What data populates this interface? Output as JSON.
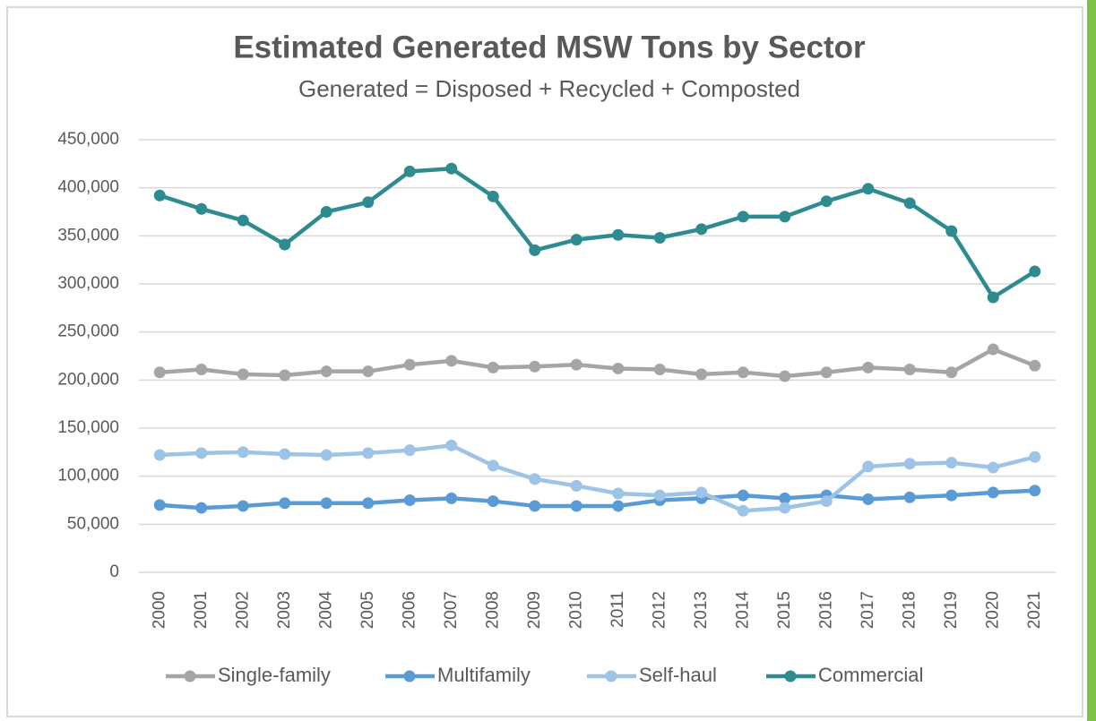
{
  "chart_data": {
    "type": "line",
    "title": "Estimated Generated MSW Tons by Sector",
    "subtitle": "Generated = Disposed + Recycled + Composted",
    "categories": [
      "2000",
      "2001",
      "2002",
      "2003",
      "2004",
      "2005",
      "2006",
      "2007",
      "2008",
      "2009",
      "2010",
      "2011",
      "2012",
      "2013",
      "2014",
      "2015",
      "2016",
      "2017",
      "2018",
      "2019",
      "2020",
      "2021"
    ],
    "series": [
      {
        "name": "Single-family",
        "color": "#a5a5a5",
        "values": [
          208000,
          211000,
          206000,
          205000,
          209000,
          209000,
          216000,
          220000,
          213000,
          214000,
          216000,
          212000,
          211000,
          206000,
          208000,
          204000,
          208000,
          213000,
          211000,
          208000,
          232000,
          215000
        ]
      },
      {
        "name": "Multifamily",
        "color": "#5b9bd5",
        "values": [
          70000,
          67000,
          69000,
          72000,
          72000,
          72000,
          75000,
          77000,
          74000,
          69000,
          69000,
          69000,
          75000,
          77000,
          80000,
          77000,
          80000,
          76000,
          78000,
          80000,
          83000,
          85000
        ]
      },
      {
        "name": "Self-haul",
        "color": "#9dc3e6",
        "values": [
          122000,
          124000,
          125000,
          123000,
          122000,
          124000,
          127000,
          132000,
          111000,
          97000,
          90000,
          82000,
          80000,
          83000,
          64000,
          67000,
          74000,
          110000,
          113000,
          114000,
          109000,
          120000
        ]
      },
      {
        "name": "Commercial",
        "color": "#2e8b8f",
        "values": [
          392000,
          378000,
          366000,
          341000,
          375000,
          385000,
          417000,
          420000,
          391000,
          335000,
          346000,
          351000,
          348000,
          357000,
          370000,
          370000,
          386000,
          399000,
          384000,
          355000,
          286000,
          313000
        ]
      }
    ],
    "ylim": [
      0,
      450000
    ],
    "yticks": [
      0,
      {
        "value": 50000,
        "label": "50,000"
      },
      {
        "value": 100000,
        "label": "100,000"
      },
      {
        "value": 150000,
        "label": "150,000"
      },
      {
        "value": 200000,
        "label": "200,000"
      },
      {
        "value": 250000,
        "label": "250,000"
      },
      {
        "value": 300000,
        "label": "300,000"
      },
      {
        "value": 350000,
        "label": "350,000"
      },
      {
        "value": 400000,
        "label": "400,000"
      },
      {
        "value": 450000,
        "label": "450,000"
      }
    ],
    "grid": true
  }
}
